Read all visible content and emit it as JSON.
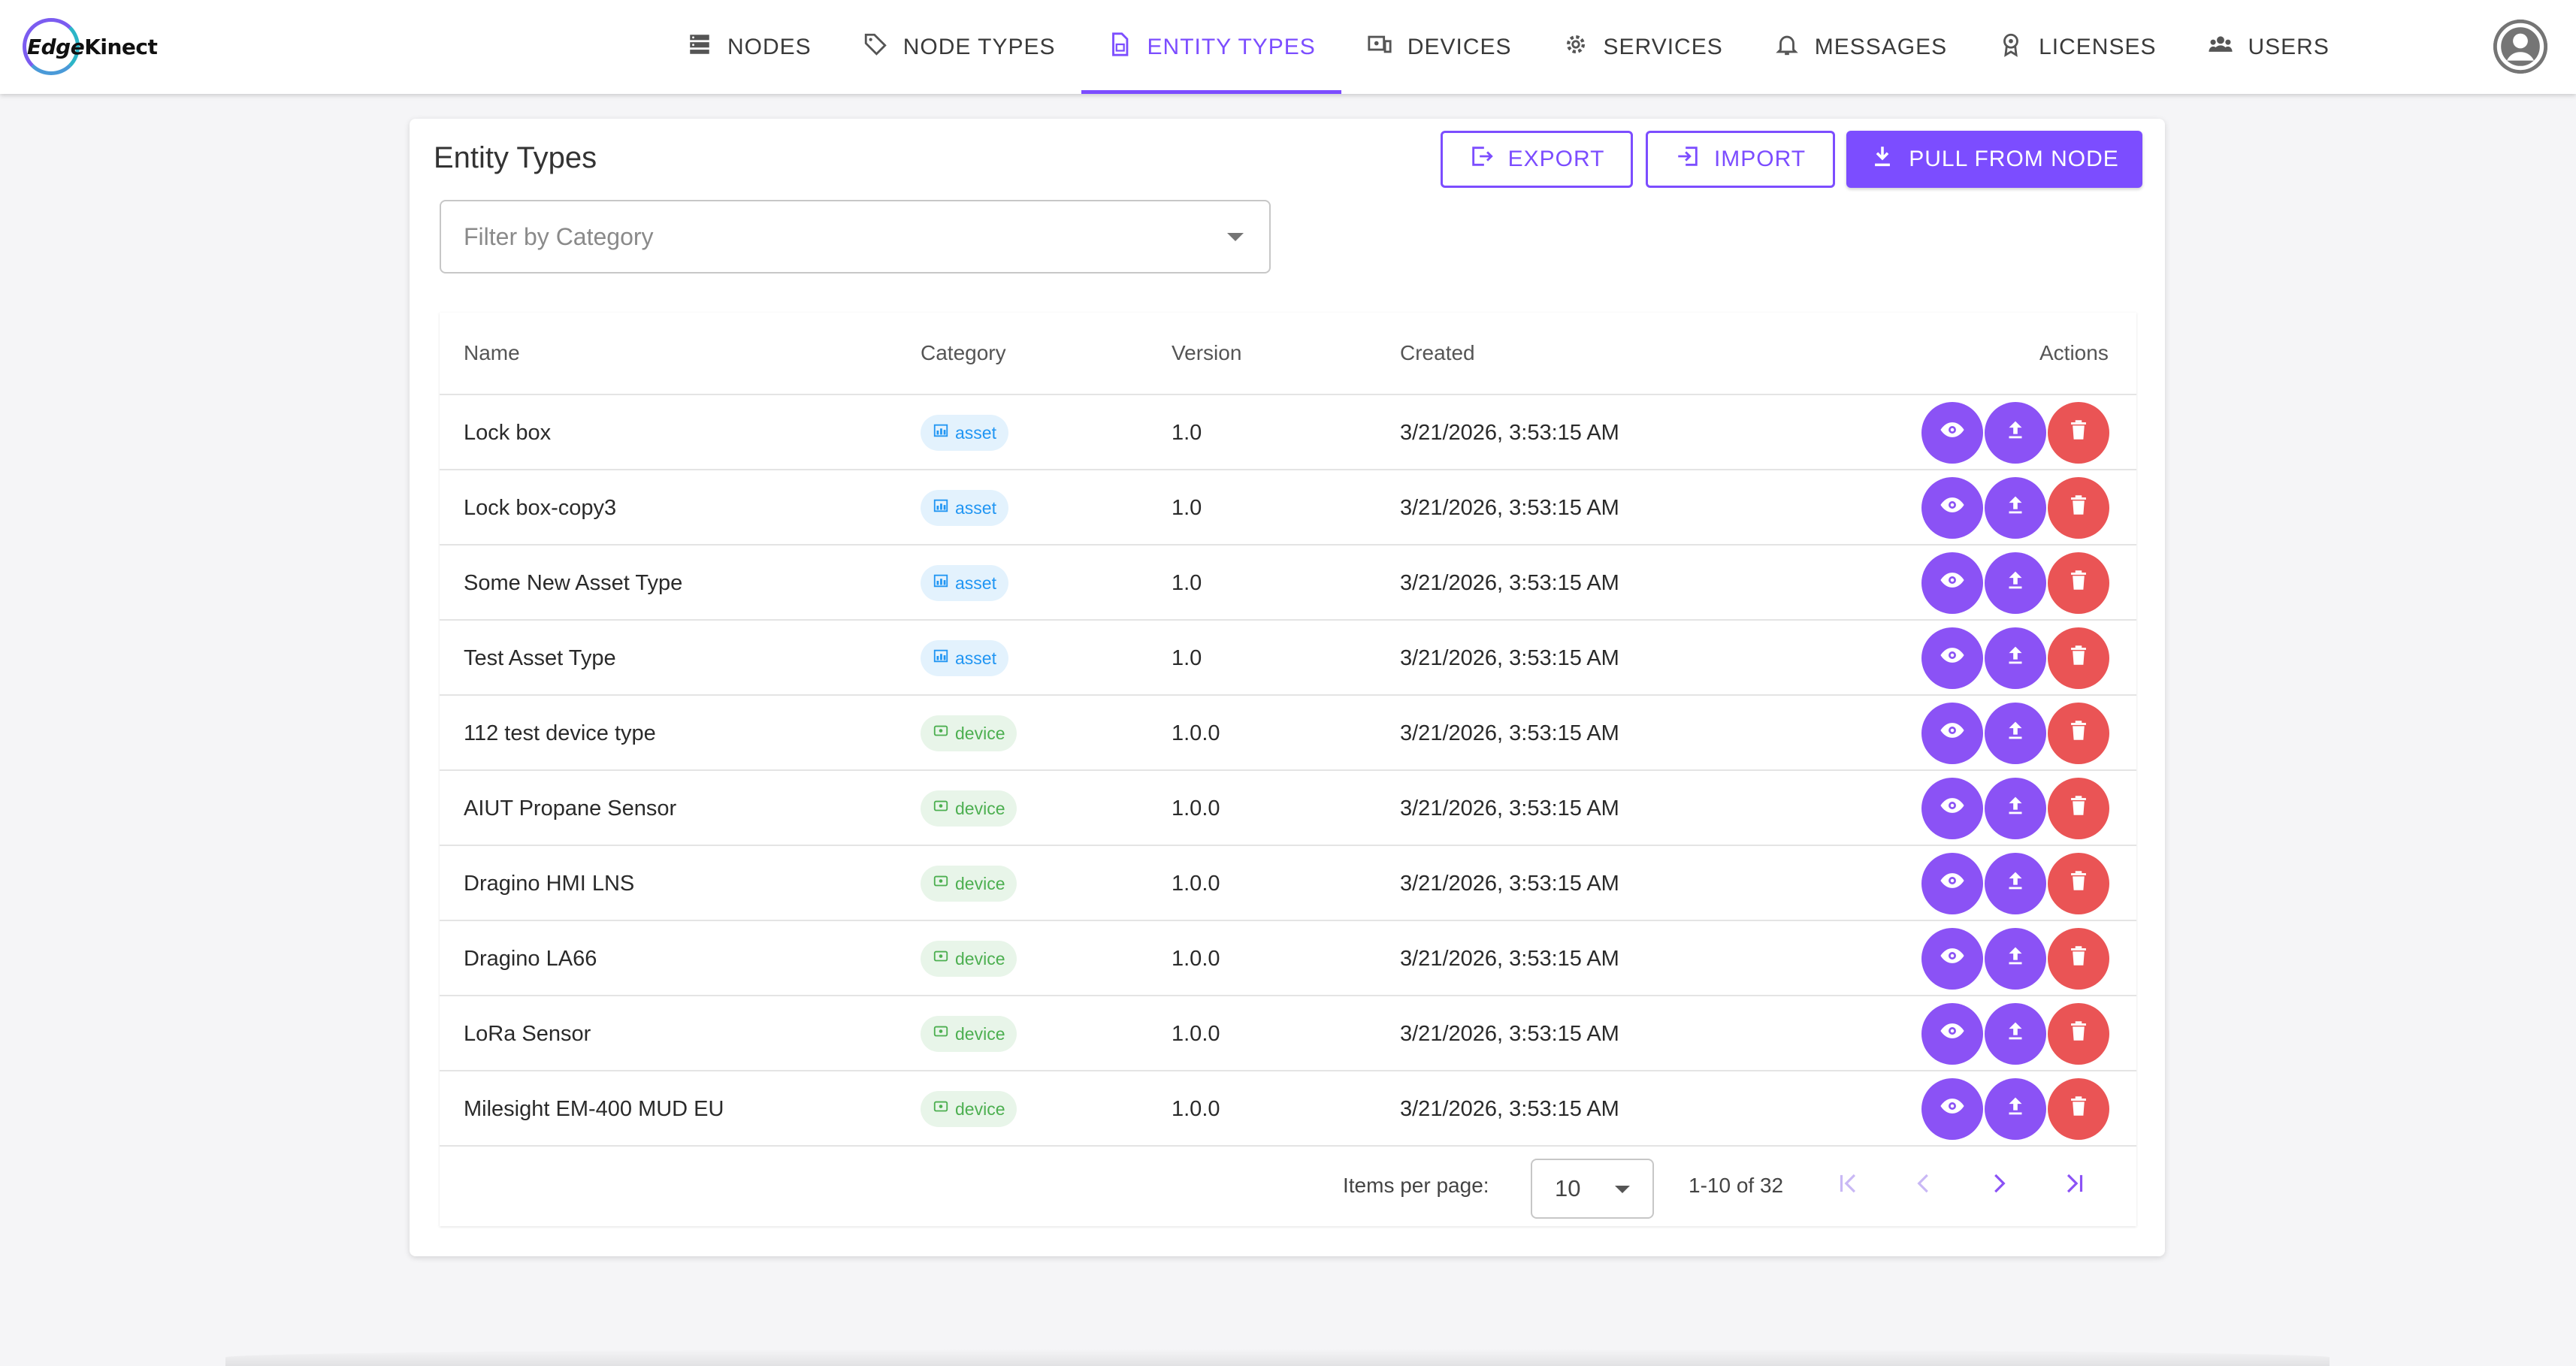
{
  "app": {
    "logo_text_1": "Edge",
    "logo_text_2": "Kinect"
  },
  "nav": {
    "items": [
      {
        "label": "NODES",
        "icon": "server-icon"
      },
      {
        "label": "NODE TYPES",
        "icon": "tag-icon"
      },
      {
        "label": "ENTITY TYPES",
        "icon": "document-icon",
        "active": true
      },
      {
        "label": "DEVICES",
        "icon": "devices-icon"
      },
      {
        "label": "SERVICES",
        "icon": "gear-icon"
      },
      {
        "label": "MESSAGES",
        "icon": "bell-icon"
      },
      {
        "label": "LICENSES",
        "icon": "badge-icon"
      },
      {
        "label": "USERS",
        "icon": "users-icon"
      }
    ],
    "accent_color": "#7c4dff"
  },
  "page": {
    "title": "Entity Types",
    "export_label": "EXPORT",
    "import_label": "IMPORT",
    "pull_label": "PULL FROM NODE",
    "filter_placeholder": "Filter by Category"
  },
  "table": {
    "columns": {
      "name": "Name",
      "category": "Category",
      "version": "Version",
      "created": "Created",
      "actions": "Actions"
    },
    "rows": [
      {
        "name": "Lock box",
        "category": "asset",
        "version": "1.0",
        "created": "3/21/2026, 3:53:15 AM"
      },
      {
        "name": "Lock box-copy3",
        "category": "asset",
        "version": "1.0",
        "created": "3/21/2026, 3:53:15 AM"
      },
      {
        "name": "Some New Asset Type",
        "category": "asset",
        "version": "1.0",
        "created": "3/21/2026, 3:53:15 AM"
      },
      {
        "name": "Test Asset Type",
        "category": "asset",
        "version": "1.0",
        "created": "3/21/2026, 3:53:15 AM"
      },
      {
        "name": "112 test device type",
        "category": "device",
        "version": "1.0.0",
        "created": "3/21/2026, 3:53:15 AM"
      },
      {
        "name": "AIUT Propane Sensor",
        "category": "device",
        "version": "1.0.0",
        "created": "3/21/2026, 3:53:15 AM"
      },
      {
        "name": "Dragino HMI LNS",
        "category": "device",
        "version": "1.0.0",
        "created": "3/21/2026, 3:53:15 AM"
      },
      {
        "name": "Dragino LA66",
        "category": "device",
        "version": "1.0.0",
        "created": "3/21/2026, 3:53:15 AM"
      },
      {
        "name": "LoRa Sensor",
        "category": "device",
        "version": "1.0.0",
        "created": "3/21/2026, 3:53:15 AM"
      },
      {
        "name": "Milesight EM-400 MUD EU",
        "category": "device",
        "version": "1.0.0",
        "created": "3/21/2026, 3:53:15 AM"
      }
    ],
    "action_colors": {
      "view": "#8b52f5",
      "push": "#8b52f5",
      "delete": "#ea5455"
    }
  },
  "pagination": {
    "items_per_page_label": "Items per page:",
    "items_per_page": "10",
    "range": "1-10 of 32"
  }
}
